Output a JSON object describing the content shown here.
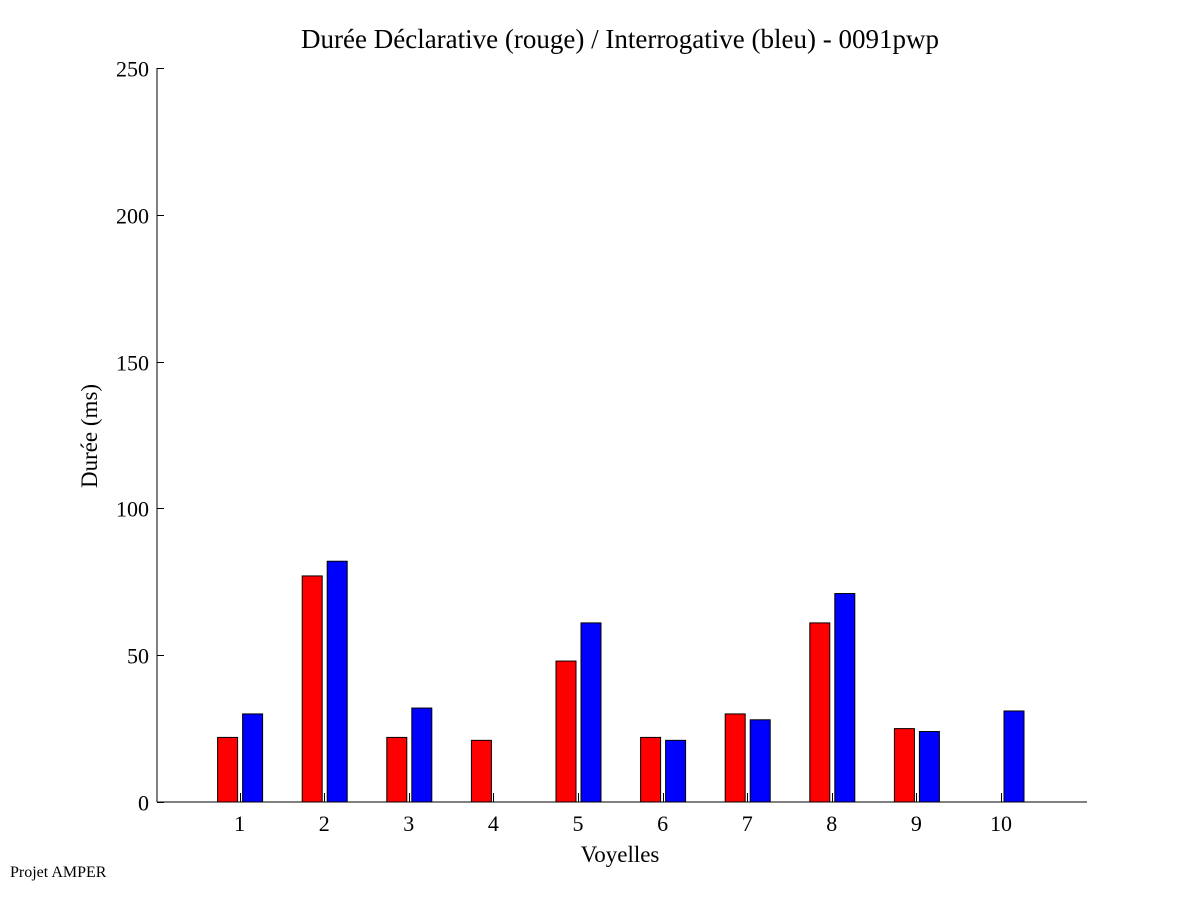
{
  "footer": {
    "text": "Projet AMPER"
  },
  "colors": {
    "declarative": "#ff0000",
    "interrogative": "#0000ff",
    "axis": "#000000",
    "background": "#ffffff"
  },
  "chart_data": {
    "type": "bar",
    "title": "Durée Déclarative (rouge) / Interrogative (bleu) - 0091pwp",
    "xlabel": "Voyelles",
    "ylabel": "Durée (ms)",
    "ylim": [
      0,
      250
    ],
    "yticks": [
      0,
      50,
      100,
      150,
      200,
      250
    ],
    "grid": false,
    "categories": [
      "1",
      "2",
      "3",
      "4",
      "5",
      "6",
      "7",
      "8",
      "9",
      "10"
    ],
    "series": [
      {
        "color": "#ff0000",
        "values": [
          22,
          77,
          22,
          21,
          48,
          22,
          30,
          61,
          25,
          0
        ]
      },
      {
        "color": "#0000ff",
        "values": [
          30,
          82,
          32,
          0,
          61,
          21,
          28,
          71,
          24,
          31
        ]
      }
    ]
  }
}
